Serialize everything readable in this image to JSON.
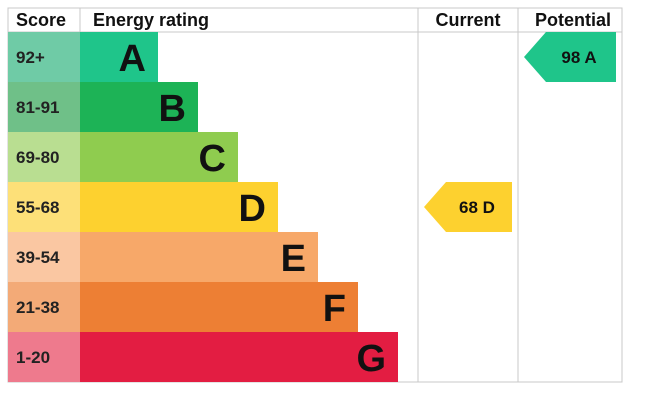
{
  "chart_data": {
    "type": "table",
    "headers": {
      "score": "Score",
      "rating": "Energy rating",
      "current": "Current",
      "potential": "Potential"
    },
    "bands": [
      {
        "letter": "A",
        "range": "92+",
        "min": 92,
        "max": 100,
        "color": "#1fc58a",
        "score_bg": "#6fcba6"
      },
      {
        "letter": "B",
        "range": "81-91",
        "min": 81,
        "max": 91,
        "color": "#1db356",
        "score_bg": "#6fc088"
      },
      {
        "letter": "C",
        "range": "69-80",
        "min": 69,
        "max": 80,
        "color": "#8fcc4f",
        "score_bg": "#b9de91"
      },
      {
        "letter": "D",
        "range": "55-68",
        "min": 55,
        "max": 68,
        "color": "#fdd12f",
        "score_bg": "#fde078"
      },
      {
        "letter": "E",
        "range": "39-54",
        "min": 39,
        "max": 54,
        "color": "#f7a869",
        "score_bg": "#fac7a2"
      },
      {
        "letter": "F",
        "range": "21-38",
        "min": 21,
        "max": 38,
        "color": "#ed7f34",
        "score_bg": "#f3aa77"
      },
      {
        "letter": "G",
        "range": "1-20",
        "min": 1,
        "max": 20,
        "color": "#e31d42",
        "score_bg": "#ee7a8d"
      }
    ],
    "current": {
      "value": 68,
      "letter": "D",
      "label": "68 D"
    },
    "potential": {
      "value": 98,
      "letter": "A",
      "label": "98 A"
    }
  },
  "colors": {
    "grid": "#c8c8c8",
    "text": "#111111"
  }
}
